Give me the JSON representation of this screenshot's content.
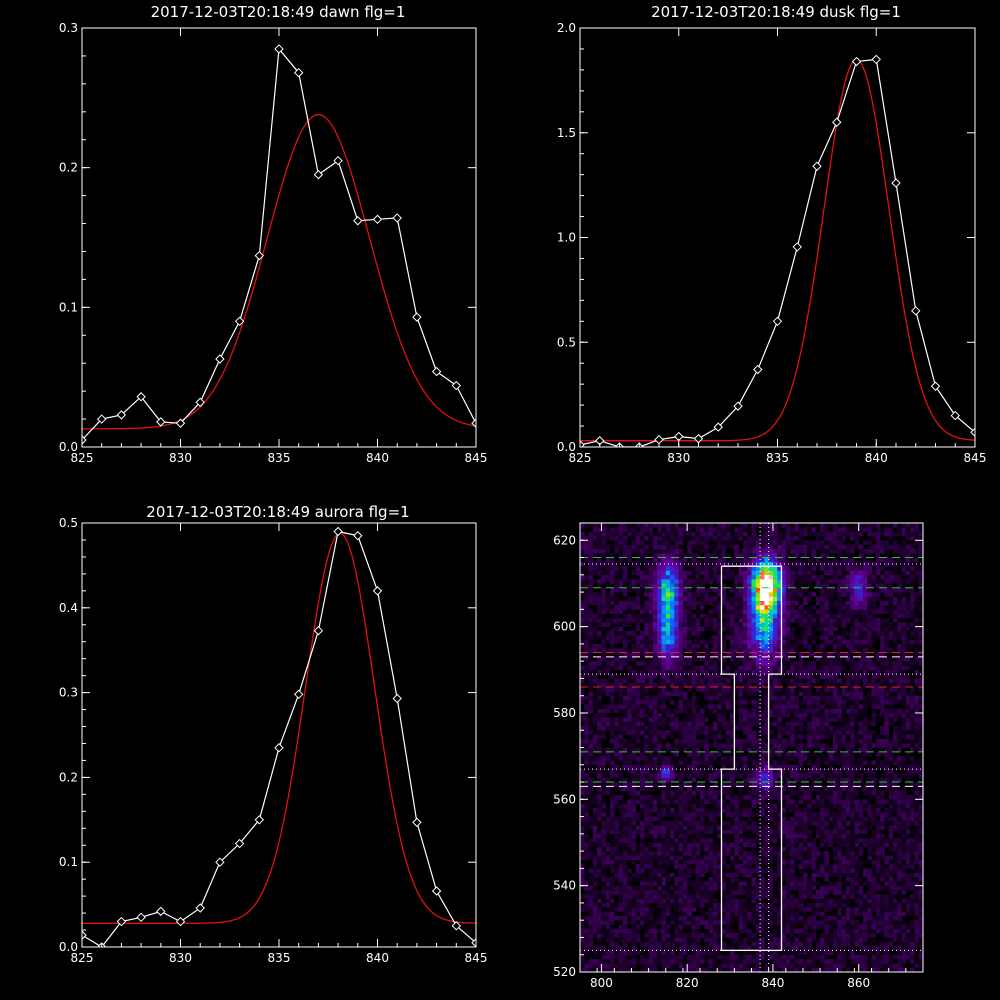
{
  "colors": {
    "background": "#000000",
    "axes": "#ffffff",
    "observed": "#ffffff",
    "fit": "#e01010",
    "box": "#ffffff",
    "dash_green": "#22cc22",
    "dash_red": "#dd2222",
    "dash_white": "#ffffff"
  },
  "chart_data": [
    {
      "type": "line",
      "title": "2017-12-03T20:18:49 dawn flg=1",
      "xlim": [
        825,
        845
      ],
      "ylim": [
        0,
        0.3
      ],
      "xticks": [
        "825",
        "830",
        "835",
        "840",
        "845"
      ],
      "yticks": [
        "0.0",
        "0.1",
        "0.2",
        "0.3"
      ],
      "tick_values_x": [
        825,
        830,
        835,
        840,
        845
      ],
      "tick_values_y": [
        0,
        0.1,
        0.2,
        0.3
      ],
      "series": [
        {
          "x": [
            825,
            826,
            827,
            828,
            829,
            830,
            831,
            832,
            833,
            834,
            835,
            836,
            837,
            838,
            839,
            840,
            841,
            842,
            843,
            844,
            845
          ],
          "y": [
            0.005,
            0.02,
            0.023,
            0.036,
            0.018,
            0.017,
            0.032,
            0.063,
            0.09,
            0.137,
            0.285,
            0.268,
            0.195,
            0.205,
            0.162,
            0.163,
            0.164,
            0.093,
            0.054,
            0.044,
            0.017
          ],
          "markers": true
        },
        {
          "fit": {
            "baseline": 0.013,
            "amplitude": 0.225,
            "center": 837.0,
            "sigma": 2.6
          }
        }
      ]
    },
    {
      "type": "line",
      "title": "2017-12-03T20:18:49 dusk flg=1",
      "xlim": [
        825,
        845
      ],
      "ylim": [
        0,
        2.0
      ],
      "xticks": [
        "825",
        "830",
        "835",
        "840",
        "845"
      ],
      "yticks": [
        "0.0",
        "0.5",
        "1.0",
        "1.5",
        "2.0"
      ],
      "tick_values_x": [
        825,
        830,
        835,
        840,
        845
      ],
      "tick_values_y": [
        0,
        0.5,
        1.0,
        1.5,
        2.0
      ],
      "series": [
        {
          "x": [
            825,
            826,
            827,
            828,
            829,
            830,
            831,
            832,
            833,
            834,
            835,
            836,
            837,
            838,
            839,
            840,
            841,
            842,
            843,
            844,
            845
          ],
          "y": [
            0.01,
            0.03,
            0.0,
            0.0,
            0.035,
            0.05,
            0.04,
            0.095,
            0.195,
            0.37,
            0.6,
            0.955,
            1.34,
            1.55,
            1.84,
            1.85,
            1.26,
            0.65,
            0.29,
            0.15,
            0.07
          ],
          "markers": true
        },
        {
          "fit": {
            "baseline": 0.03,
            "amplitude": 1.82,
            "center": 839.0,
            "sigma": 1.65
          }
        }
      ]
    },
    {
      "type": "line",
      "title": "2017-12-03T20:18:49 aurora flg=1",
      "xlim": [
        825,
        845
      ],
      "ylim": [
        0,
        0.5
      ],
      "xticks": [
        "825",
        "830",
        "835",
        "840",
        "845"
      ],
      "yticks": [
        "0.0",
        "0.1",
        "0.2",
        "0.3",
        "0.4",
        "0.5"
      ],
      "tick_values_x": [
        825,
        830,
        835,
        840,
        845
      ],
      "tick_values_y": [
        0,
        0.1,
        0.2,
        0.3,
        0.4,
        0.5
      ],
      "series": [
        {
          "x": [
            825,
            826,
            827,
            828,
            829,
            830,
            831,
            832,
            833,
            834,
            835,
            836,
            837,
            838,
            839,
            840,
            841,
            842,
            843,
            844,
            845
          ],
          "y": [
            0.014,
            0.0,
            0.03,
            0.035,
            0.042,
            0.03,
            0.046,
            0.1,
            0.122,
            0.15,
            0.235,
            0.298,
            0.373,
            0.49,
            0.485,
            0.42,
            0.293,
            0.147,
            0.066,
            0.025,
            0.005
          ],
          "markers": true
        },
        {
          "fit": {
            "baseline": 0.028,
            "amplitude": 0.46,
            "center": 838.1,
            "sigma": 1.75
          }
        }
      ]
    },
    {
      "type": "heatmap",
      "xlim": [
        795,
        875
      ],
      "ylim": [
        520,
        624
      ],
      "xticks": [
        "800",
        "820",
        "840",
        "860"
      ],
      "yticks": [
        "520",
        "540",
        "560",
        "580",
        "600",
        "620"
      ],
      "tick_values_x": [
        800,
        820,
        840,
        860
      ],
      "tick_values_y": [
        520,
        540,
        560,
        580,
        600,
        620
      ],
      "blobs": [
        {
          "x": 815.5,
          "y": 608,
          "sx": 1.8,
          "sy": 4.5,
          "amp": 0.55
        },
        {
          "x": 815.5,
          "y": 598,
          "sx": 1.6,
          "sy": 4,
          "amp": 0.4
        },
        {
          "x": 838.5,
          "y": 610,
          "sx": 2.2,
          "sy": 3.5,
          "amp": 1.0
        },
        {
          "x": 838,
          "y": 602,
          "sx": 2.2,
          "sy": 6,
          "amp": 0.6
        },
        {
          "x": 860,
          "y": 609,
          "sx": 1.5,
          "sy": 3,
          "amp": 0.25
        },
        {
          "x": 815,
          "y": 566,
          "sx": 1,
          "sy": 1.2,
          "amp": 0.3
        },
        {
          "x": 838,
          "y": 565,
          "sx": 1.5,
          "sy": 2,
          "amp": 0.25
        }
      ],
      "box_outline": [
        [
          828,
          614
        ],
        [
          842,
          614
        ],
        [
          842,
          589
        ],
        [
          839,
          589
        ],
        [
          839,
          567
        ],
        [
          842,
          567
        ],
        [
          842,
          525
        ],
        [
          828,
          525
        ],
        [
          828,
          567
        ],
        [
          831,
          567
        ],
        [
          831,
          589
        ],
        [
          828,
          589
        ],
        [
          828,
          614
        ]
      ],
      "vlines_dotted": [
        837,
        839
      ],
      "hlines": [
        {
          "y": 616,
          "style": "green-dashed"
        },
        {
          "y": 614.5,
          "style": "white-dotted"
        },
        {
          "y": 609,
          "style": "green-dashed"
        },
        {
          "y": 594,
          "style": "red-dashed"
        },
        {
          "y": 593,
          "style": "white-dashed"
        },
        {
          "y": 589,
          "style": "white-dotted"
        },
        {
          "y": 586,
          "style": "red-dashed"
        },
        {
          "y": 571,
          "style": "green-dashed"
        },
        {
          "y": 567,
          "style": "white-dotted"
        },
        {
          "y": 564,
          "style": "green-dashed"
        },
        {
          "y": 563,
          "style": "white-dashed"
        },
        {
          "y": 525,
          "style": "white-dotted"
        }
      ]
    }
  ]
}
